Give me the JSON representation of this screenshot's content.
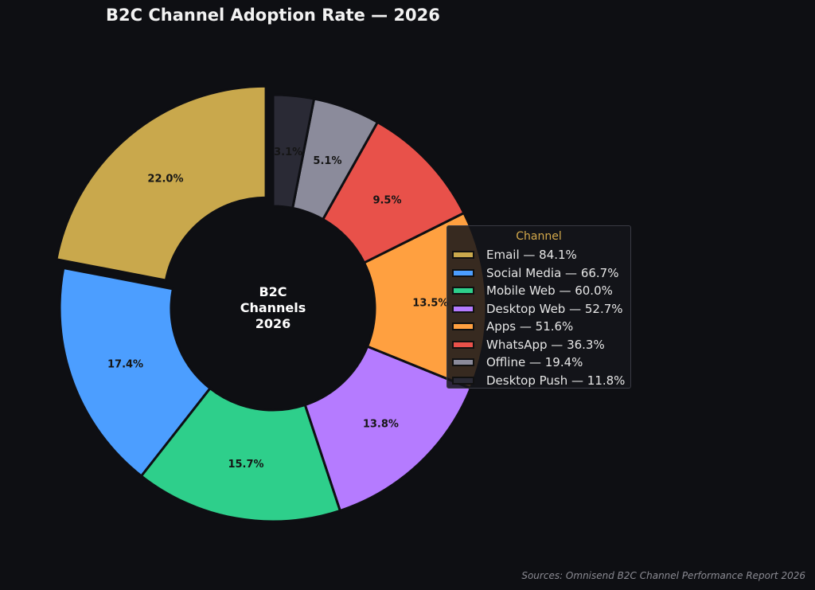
{
  "chart_data": {
    "type": "pie",
    "variant": "donut",
    "title": "B2C Channel Adoption Rate — 2026",
    "center_label": [
      "B2C",
      "Channels",
      "2026"
    ],
    "legend_title": "Channel",
    "legend_position": "right",
    "categories": [
      "Email",
      "Social Media",
      "Mobile Web",
      "Desktop Web",
      "Apps",
      "WhatsApp",
      "Offline",
      "Desktop Push"
    ],
    "values": [
      84.1,
      66.7,
      60.0,
      52.7,
      51.6,
      36.3,
      19.4,
      11.8
    ],
    "legend_labels": [
      "Email — 84.1%",
      "Social Media — 66.7%",
      "Mobile Web — 60.0%",
      "Desktop Web — 52.7%",
      "Apps — 51.6%",
      "WhatsApp — 36.3%",
      "Offline — 19.4%",
      "Desktop Push — 11.8%"
    ],
    "slice_labels": [
      "22.0%",
      "17.4%",
      "15.7%",
      "13.8%",
      "13.5%",
      "9.5%",
      "5.1%",
      "3.1%"
    ],
    "colors": [
      "#c9a84c",
      "#4c9eff",
      "#2ecf8b",
      "#b57bff",
      "#ffa040",
      "#e8514a",
      "#8b8b9b",
      "#2a2a35"
    ],
    "exploded_slice": "Email",
    "source": "Sources: Omnisend B2C Channel Performance Report 2026"
  }
}
